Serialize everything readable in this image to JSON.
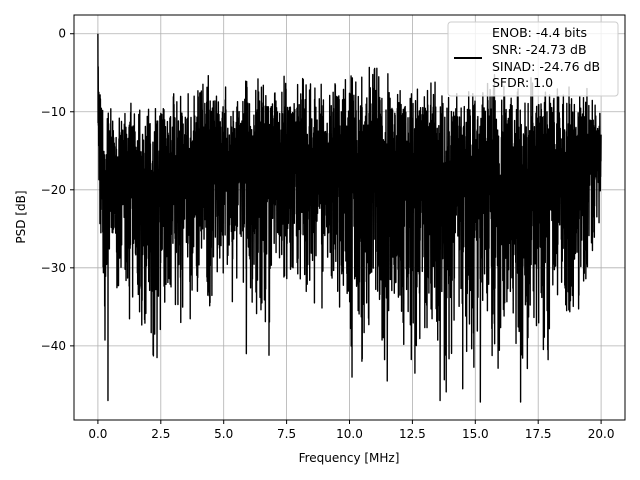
{
  "chart_data": {
    "type": "line",
    "title": "",
    "xlabel": "Frequency [MHz]",
    "ylabel": "PSD [dB]",
    "xlim": [
      -0.95,
      20.95
    ],
    "ylim": [
      -49.5,
      2.4
    ],
    "x_ticks": [
      0.0,
      2.5,
      5.0,
      7.5,
      10.0,
      12.5,
      15.0,
      17.5,
      20.0
    ],
    "x_tick_labels": [
      "0.0",
      "2.5",
      "5.0",
      "7.5",
      "10.0",
      "12.5",
      "15.0",
      "17.5",
      "20.0"
    ],
    "y_ticks": [
      0,
      -10,
      -20,
      -30,
      -40
    ],
    "y_tick_labels": [
      "0",
      "−10",
      "−20",
      "−30",
      "−40"
    ],
    "grid": true,
    "legend_position": "top-right",
    "line_color": "#000000",
    "series": [
      {
        "name": "ENOB: -4.4 bits\nSNR: -24.73 dB\nSINAD: -24.76 dB\nSFDR: 1.0",
        "color": "#000000",
        "x": [
          0.0,
          0.1,
          0.2,
          0.3,
          0.4,
          0.5,
          0.6,
          0.8,
          1.0,
          1.2,
          1.5,
          1.8,
          2.0,
          2.2,
          2.4,
          2.5,
          2.7,
          3.0,
          3.3,
          3.5,
          3.8,
          4.1,
          4.4,
          4.8,
          5.2,
          5.6,
          6.0,
          6.4,
          6.9,
          7.4,
          7.9,
          8.4,
          8.9,
          9.4,
          9.9,
          10.4,
          10.9,
          11.4,
          11.9,
          12.4,
          12.9,
          13.4,
          13.9,
          14.4,
          14.9,
          15.4,
          15.9,
          16.4,
          16.9,
          17.4,
          17.9,
          18.4,
          18.9,
          19.4,
          20.0
        ],
        "y_upper": [
          0.0,
          -7.5,
          -9.0,
          -10.0,
          -8.5,
          -9.5,
          -10.0,
          -9.5,
          -8.5,
          -9.0,
          -8.5,
          -9.5,
          -9.0,
          -8.0,
          -7.5,
          -8.0,
          -8.5,
          -7.0,
          -6.5,
          -7.5,
          -6.0,
          -5.5,
          -5.0,
          -6.5,
          -6.0,
          -5.0,
          -5.5,
          -5.0,
          -4.5,
          -5.0,
          -5.5,
          -5.0,
          -6.0,
          -5.5,
          -4.0,
          -4.5,
          -3.5,
          -4.5,
          -6.0,
          -5.0,
          -5.5,
          -4.5,
          -5.0,
          -6.0,
          -5.5,
          -5.0,
          -4.5,
          -5.5,
          -5.0,
          -5.5,
          -6.0,
          -7.0,
          -6.5,
          -6.0,
          -10.0
        ],
        "y_lower": [
          -18.0,
          -26.0,
          -33.0,
          -47.0,
          -27.0,
          -31.0,
          -28.0,
          -36.0,
          -30.0,
          -38.0,
          -32.0,
          -42.0,
          -35.0,
          -41.5,
          -38.0,
          -40.0,
          -33.0,
          -37.0,
          -40.0,
          -34.0,
          -43.0,
          -35.0,
          -37.0,
          -33.0,
          -36.0,
          -32.0,
          -35.0,
          -37.0,
          -37.0,
          -32.0,
          -33.0,
          -34.0,
          -36.0,
          -33.0,
          -38.0,
          -44.0,
          -35.0,
          -44.5,
          -37.0,
          -43.0,
          -38.0,
          -38.0,
          -47.0,
          -36.0,
          -46.0,
          -35.0,
          -47.0,
          -37.0,
          -45.0,
          -39.0,
          -42.0,
          -34.0,
          -38.0,
          -32.0,
          -25.0
        ],
        "spikes": [
          {
            "x": 0.4,
            "y": -47.0
          },
          {
            "x": 2.35,
            "y": -41.5
          },
          {
            "x": 5.9,
            "y": -41.0
          },
          {
            "x": 6.8,
            "y": -41.2
          },
          {
            "x": 10.1,
            "y": -44.0
          },
          {
            "x": 11.5,
            "y": -44.5
          },
          {
            "x": 12.6,
            "y": -43.5
          },
          {
            "x": 13.6,
            "y": -47.0
          },
          {
            "x": 14.5,
            "y": -45.5
          },
          {
            "x": 15.2,
            "y": -47.2
          },
          {
            "x": 16.8,
            "y": -47.2
          }
        ]
      }
    ],
    "legend_lines": [
      "ENOB: -4.4 bits",
      "SNR: -24.73 dB",
      "SINAD: -24.76 dB",
      "SFDR: 1.0"
    ]
  }
}
